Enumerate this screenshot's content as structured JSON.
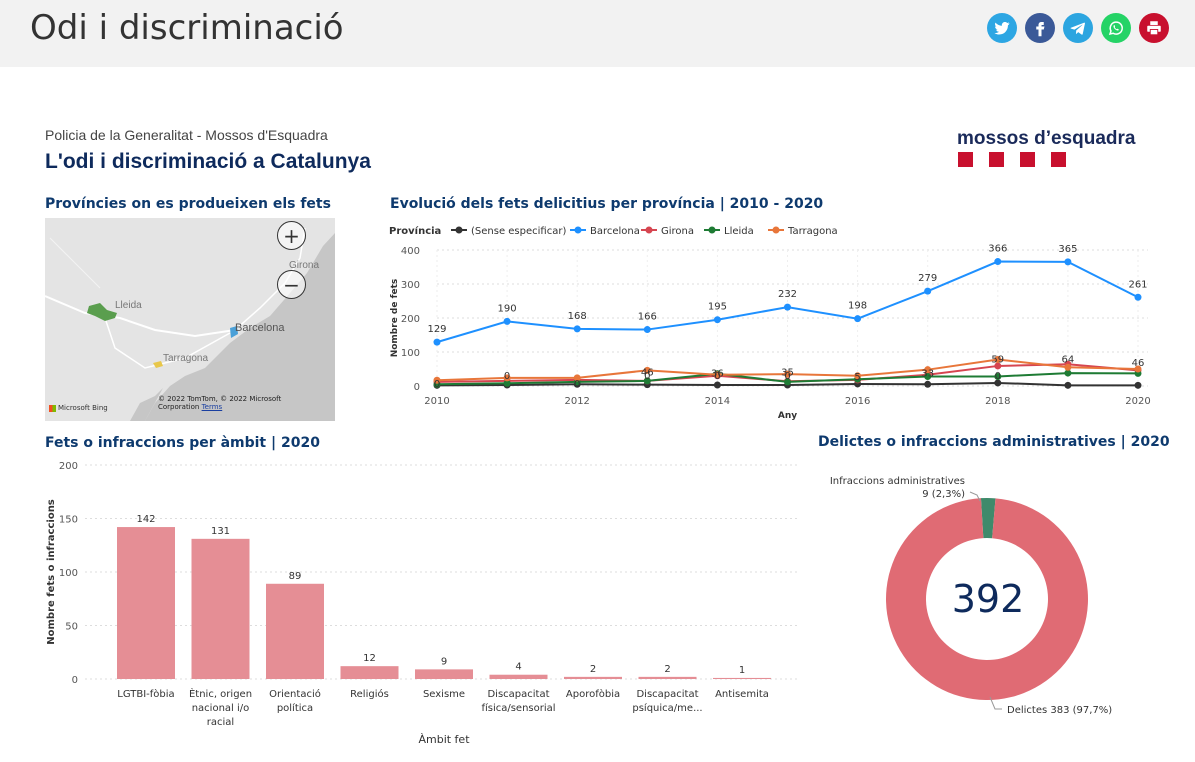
{
  "page": {
    "title": "Odi i discriminació"
  },
  "share": [
    {
      "name": "twitter-icon",
      "color": "#1da1f2"
    },
    {
      "name": "facebook-icon",
      "color": "#3b5998"
    },
    {
      "name": "telegram-icon",
      "color": "#2ca5e0"
    },
    {
      "name": "whatsapp-icon",
      "color": "#25d366"
    },
    {
      "name": "print-icon",
      "color": "#c8102e"
    }
  ],
  "report": {
    "org": "Policia de la Generalitat - Mossos d'Esquadra",
    "title": "L'odi i discriminació a Catalunya",
    "logo": "mossos d’esquadra"
  },
  "map": {
    "title": "Províncies on es produeixen els fets",
    "labels": {
      "girona": "Girona",
      "lleida": "Lleida",
      "barcelona": "Barcelona",
      "tarragona": "Tarragona"
    },
    "copyright": "© 2022 TomTom, © 2022 Microsoft Corporation",
    "terms": "Terms",
    "bing": "Microsoft Bing",
    "zoom_in": "+",
    "zoom_out": "−"
  },
  "line_section": {
    "title": "Evolució dels fets delicitius per província | 2010 - 2020"
  },
  "bar_section": {
    "title": "Fets o infraccions per àmbit | 2020"
  },
  "donut_section": {
    "title": "Delictes o infraccions administratives | 2020"
  },
  "chart_data": [
    {
      "type": "line",
      "legend_title": "Província",
      "xlabel": "Any",
      "ylabel": "Nombre de fets",
      "x": [
        2010,
        2011,
        2012,
        2013,
        2014,
        2015,
        2016,
        2017,
        2018,
        2019,
        2020
      ],
      "xticks": [
        2010,
        2012,
        2014,
        2016,
        2018,
        2020
      ],
      "ylim": [
        0,
        400
      ],
      "yticks": [
        0,
        100,
        200,
        300,
        400
      ],
      "series": [
        {
          "name": "(Sense especificar)",
          "color": "#333333",
          "values": [
            2,
            3,
            5,
            4,
            3,
            3,
            6,
            5,
            9,
            2,
            2
          ]
        },
        {
          "name": "Barcelona",
          "color": "#1e90ff",
          "values": [
            129,
            190,
            168,
            166,
            195,
            232,
            198,
            279,
            366,
            365,
            261
          ]
        },
        {
          "name": "Girona",
          "color": "#d64550",
          "values": [
            12,
            15,
            18,
            15,
            30,
            14,
            18,
            33,
            59,
            64,
            46
          ]
        },
        {
          "name": "Lleida",
          "color": "#1e7b34",
          "values": [
            5,
            8,
            12,
            15,
            36,
            12,
            20,
            28,
            28,
            38,
            37
          ]
        },
        {
          "name": "Tarragona",
          "color": "#e8763a",
          "values": [
            17,
            24,
            24,
            46,
            33,
            35,
            30,
            48,
            78,
            55,
            50
          ]
        }
      ],
      "labels": [
        {
          "series": "Barcelona",
          "values": [
            "129",
            "190",
            "168",
            "166",
            "195",
            "232",
            "198",
            "279",
            "366",
            "365",
            "261"
          ]
        },
        {
          "series": "lower",
          "values": [
            "0",
            "",
            "0",
            "46",
            "36",
            "35",
            "5",
            "33",
            "59",
            "64",
            "46"
          ]
        },
        {
          "series": "lower2",
          "values": [
            "",
            "0",
            "",
            "0",
            "0",
            "0",
            "",
            "",
            "0",
            "",
            ""
          ]
        }
      ]
    },
    {
      "type": "bar",
      "xlabel": "Àmbit fet",
      "ylabel": "Nombre fets o infraccions",
      "ylim": [
        0,
        200
      ],
      "yticks": [
        0,
        50,
        100,
        150,
        200
      ],
      "color": "#e58e95",
      "categories": [
        [
          "LGTBI-fòbia"
        ],
        [
          "Ètnic, origen",
          "nacional i/o",
          "racial"
        ],
        [
          "Orientació",
          "política"
        ],
        [
          "Religiós"
        ],
        [
          "Sexisme"
        ],
        [
          "Discapacitat",
          "física/sensorial"
        ],
        [
          "Aporofòbia"
        ],
        [
          "Discapacitat",
          "psíquica/me..."
        ],
        [
          "Antisemita"
        ]
      ],
      "values": [
        142,
        131,
        89,
        12,
        9,
        4,
        2,
        2,
        1
      ]
    },
    {
      "type": "pie",
      "center_label": "392",
      "slices": [
        {
          "name": "Delictes",
          "value": 383,
          "label": "Delictes 383 (97,7%)",
          "color": "#e06b74"
        },
        {
          "name": "Infraccions administratives",
          "value": 9,
          "label": "9 (2,3%)",
          "color": "#3f8a6b"
        }
      ]
    }
  ]
}
